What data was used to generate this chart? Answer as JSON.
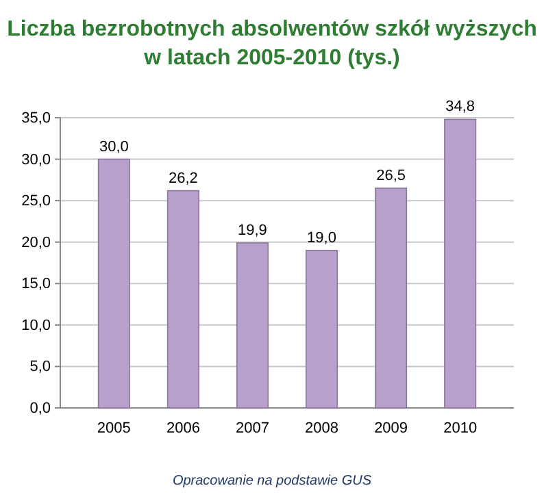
{
  "chart_data": {
    "type": "bar",
    "title": "Liczba bezrobotnych absolwentów szkół wyższych w latach 2005-2010 (tys.)",
    "categories": [
      "2005",
      "2006",
      "2007",
      "2008",
      "2009",
      "2010"
    ],
    "values": [
      30.0,
      26.2,
      19.9,
      19.0,
      26.5,
      34.8
    ],
    "value_labels": [
      "30,0",
      "26,2",
      "19,9",
      "19,0",
      "26,5",
      "34,8"
    ],
    "color": "#b7a1cc",
    "ylim": [
      0,
      35
    ],
    "yticks": [
      {
        "value": 0,
        "label": "0,0"
      },
      {
        "value": 5,
        "label": "5,0"
      },
      {
        "value": 10,
        "label": "10,0"
      },
      {
        "value": 15,
        "label": "15,0"
      },
      {
        "value": 20,
        "label": "20,0"
      },
      {
        "value": 25,
        "label": "25,0"
      },
      {
        "value": 30,
        "label": "30,0"
      },
      {
        "value": 35,
        "label": "35,0"
      }
    ],
    "grid": "y",
    "annotations": [
      "Opracowanie na podstawie GUS"
    ]
  }
}
